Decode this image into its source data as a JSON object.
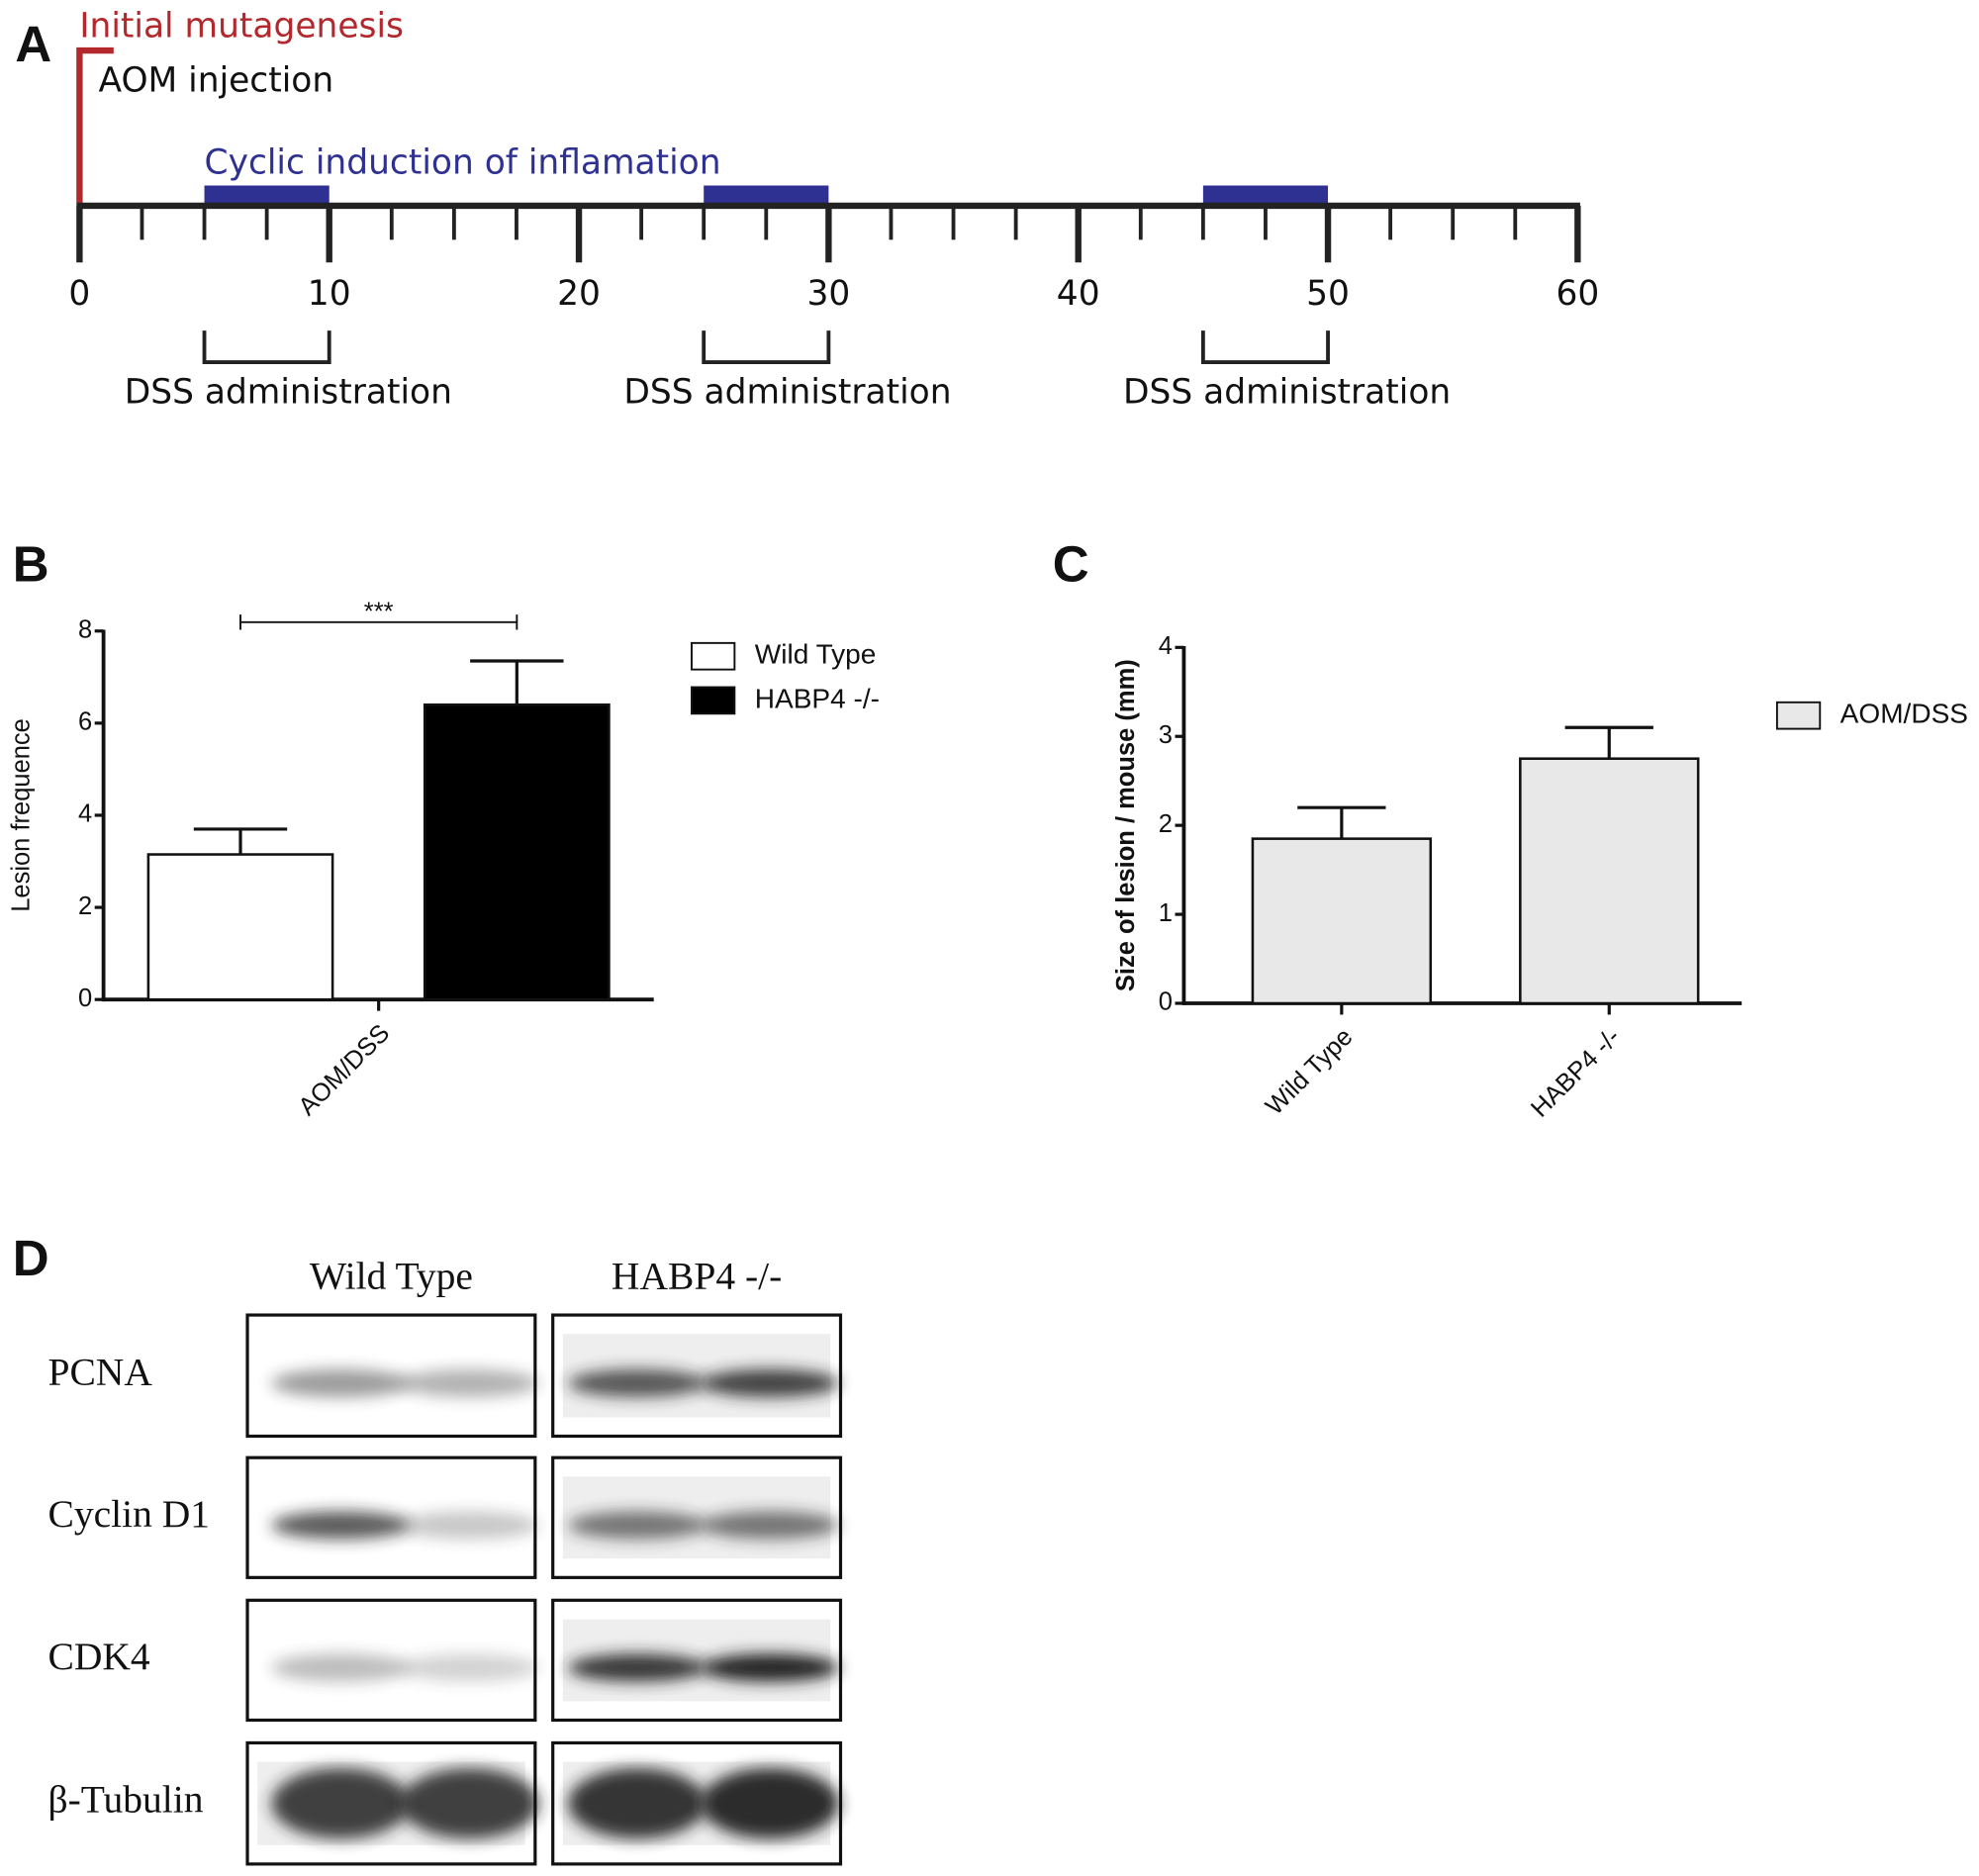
{
  "panel_labels": [
    "A",
    "B",
    "C",
    "D"
  ],
  "chart_data": [
    {
      "type": "timeline",
      "xlim": [
        0,
        60
      ],
      "xticks": [
        0,
        10,
        20,
        30,
        40,
        50,
        60
      ],
      "minor_tick_step": 2.5,
      "event": {
        "x": 0,
        "label": "Initial mutagenesis",
        "sublabel": "AOM injection",
        "color": "#b3282d"
      },
      "periods": {
        "label": "Cyclic induction of inflamation",
        "color": "#2e3192",
        "spans": [
          [
            5,
            10
          ],
          [
            25,
            30
          ],
          [
            45,
            50
          ]
        ]
      },
      "brackets": [
        {
          "span": [
            5,
            10
          ],
          "label": "DSS administration"
        },
        {
          "span": [
            25,
            30
          ],
          "label": "DSS administration"
        },
        {
          "span": [
            45,
            50
          ],
          "label": "DSS administration"
        }
      ]
    },
    {
      "type": "bar",
      "ylabel": "Lesion frequence",
      "categories": [
        "AOM/DSS"
      ],
      "series": [
        {
          "name": "Wild Type",
          "color": "#ffffff",
          "values": [
            3.15
          ],
          "errors": [
            0.55
          ]
        },
        {
          "name": "HABP4 -/-",
          "color": "#000000",
          "values": [
            6.4
          ],
          "errors": [
            0.95
          ]
        }
      ],
      "ylim": [
        0,
        8
      ],
      "yticks": [
        0,
        2,
        4,
        6,
        8
      ],
      "significance": "***",
      "legend": "right"
    },
    {
      "type": "bar",
      "ylabel": "Size of lesion / mouse (mm)",
      "categories": [
        "Wild Type",
        "HABP4 -/-"
      ],
      "series": [
        {
          "name": "AOM/DSS",
          "color": "#e8e8e8",
          "values": [
            1.85,
            2.75
          ],
          "errors": [
            0.35,
            0.35
          ]
        }
      ],
      "ylim": [
        0,
        4
      ],
      "yticks": [
        0,
        1,
        2,
        3,
        4
      ],
      "legend": "right"
    }
  ],
  "blot": {
    "columns": [
      "Wild Type",
      "HABP4 -/-"
    ],
    "rows": [
      "PCNA",
      "Cyclin D1",
      "CDK4",
      "β-Tubulin"
    ]
  }
}
